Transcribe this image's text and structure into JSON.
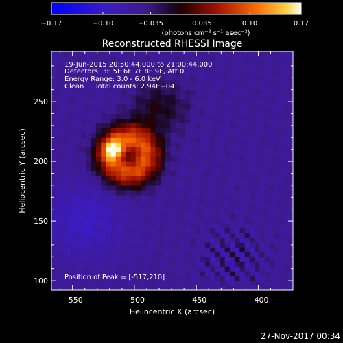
{
  "chart_data": {
    "type": "heatmap",
    "title": "Reconstructed RHESSI Image",
    "xlabel": "Heliocentric X (arcsec)",
    "ylabel": "Heliocentric Y (arcsec)",
    "xlim": [
      -567,
      -372
    ],
    "ylim": [
      92,
      292
    ],
    "xticks": [
      -550,
      -500,
      -450,
      -400
    ],
    "yticks": [
      100,
      150,
      200,
      250
    ],
    "xtick_labels": [
      "−550",
      "−500",
      "−450",
      "−400"
    ],
    "ytick_labels": [
      "100",
      "150",
      "200",
      "250"
    ],
    "colorbar": {
      "min": -0.17,
      "max": 0.17,
      "ticks": [
        -0.17,
        -0.1,
        -0.035,
        0.035,
        0.1,
        0.17
      ],
      "tick_labels": [
        "−0.17",
        "−0.10",
        "−0.035",
        "0.035",
        "0.10",
        "0.17"
      ],
      "units": "(photons cm⁻² s⁻¹ asec⁻²)"
    },
    "annotations": [
      "19-Jun-2015 20:50:44.000 to 21:00:44.000",
      "Detectors: 3F 5F 6F 7F 8F 9F, Att 0",
      "Energy Range: 3.0 - 6.0 keV",
      "Clean     Total counts: 2.94E+04"
    ],
    "peak_label": "Position of Peak = [-517,210]",
    "peak": {
      "x": -517,
      "y": 210,
      "value": 0.17
    },
    "source_ring": {
      "cx": -505,
      "cy": 205,
      "radius": 25,
      "value": 0.06
    },
    "background": {
      "value": -0.05
    }
  },
  "footer": {
    "timestamp": "27-Nov-2017 00:34"
  },
  "colors": {
    "background": "#000000",
    "text": "#ffffff"
  }
}
